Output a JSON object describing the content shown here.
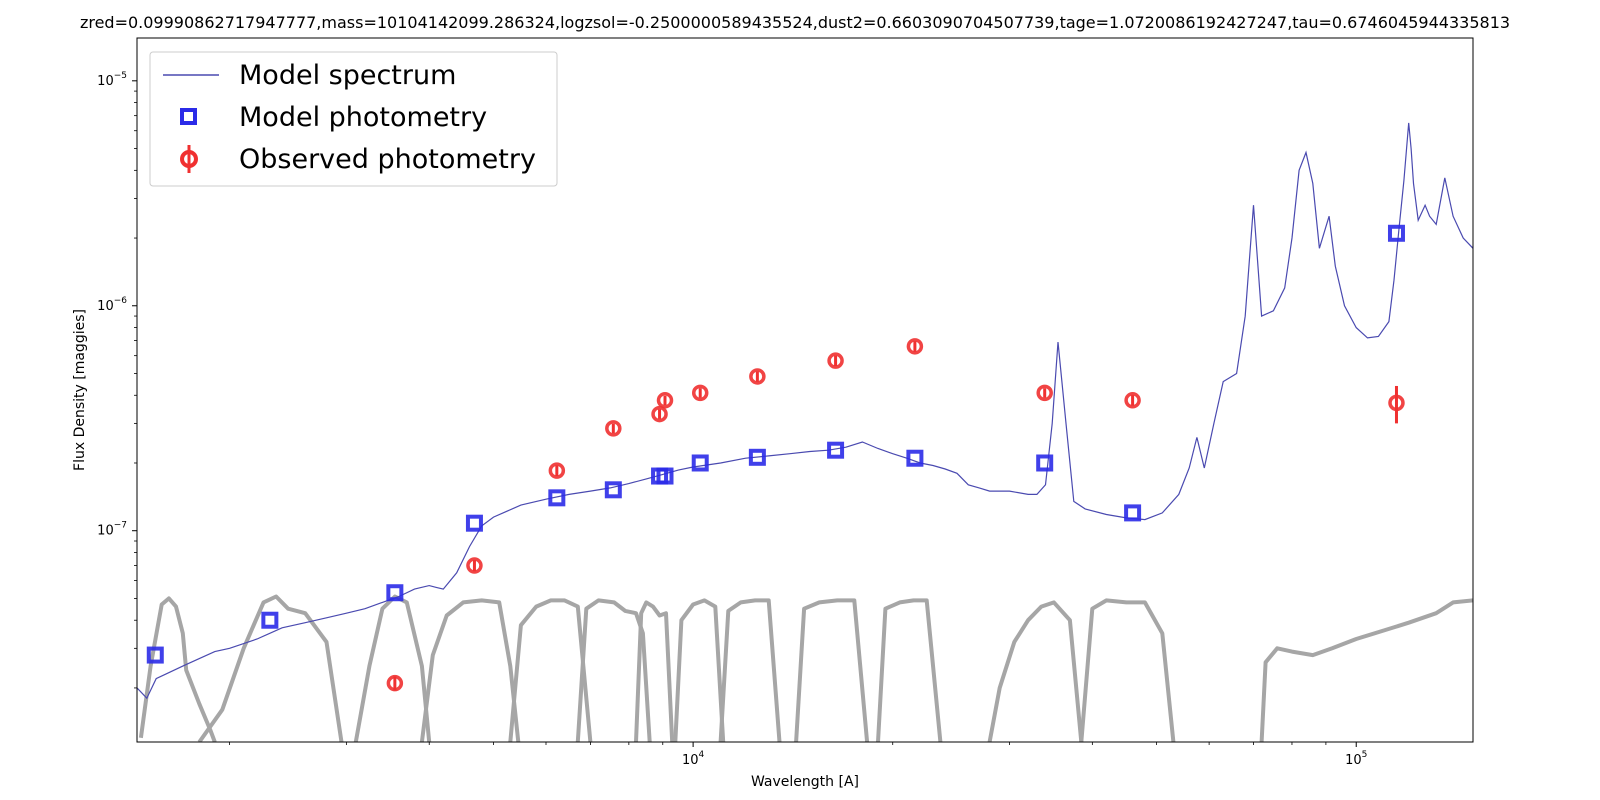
{
  "chart_data": {
    "type": "scatter",
    "title": "zred=0.09990862717947777,mass=10104142099.286324,logzsol=-0.2500000589435524,dust2=0.6603090704507739,tage=1.0720086192427247,tau=0.6746045944335813",
    "xlabel": "Wavelength [A]",
    "ylabel": "Flux Density [maggies]",
    "xscale": "log",
    "yscale": "log",
    "xlim": [
      1450,
      150000
    ],
    "ylim": [
      1.15e-08,
      1.55e-05
    ],
    "xticks": [
      {
        "value": 10000,
        "base": "10",
        "exp": "4"
      },
      {
        "value": 100000,
        "base": "10",
        "exp": "5"
      }
    ],
    "yticks": [
      {
        "value": 1e-07,
        "base": "10",
        "exp": "−7"
      },
      {
        "value": 1e-06,
        "base": "10",
        "exp": "−6"
      },
      {
        "value": 1e-05,
        "base": "10",
        "exp": "−5"
      }
    ],
    "legend": {
      "position": "top-left",
      "entries": [
        {
          "label": "Model spectrum",
          "marker": "line",
          "color": "#4a4ab0"
        },
        {
          "label": "Model photometry",
          "marker": "square",
          "color": "#2b2be8"
        },
        {
          "label": "Observed photometry",
          "marker": "circle-errorbar",
          "color": "#f03030"
        }
      ]
    },
    "colors": {
      "spectrum": "#4a4ab0",
      "model_phot": "#2b2be8",
      "observed_phot": "#f03030",
      "filters": "#a6a6a6"
    },
    "model_spectrum": {
      "x": [
        1450,
        1500,
        1550,
        1600,
        1700,
        1800,
        1900,
        2000,
        2200,
        2400,
        2600,
        2800,
        3000,
        3200,
        3400,
        3600,
        3800,
        4000,
        4100,
        4200,
        4400,
        4600,
        4800,
        5000,
        5500,
        6000,
        6500,
        7000,
        7500,
        8000,
        8500,
        9000,
        9500,
        10000,
        11000,
        12000,
        13000,
        14000,
        15000,
        16000,
        17000,
        18000,
        19000,
        20000,
        21000,
        22000,
        23000,
        24000,
        25000,
        26000,
        27000,
        28000,
        30000,
        32000,
        33000,
        34000,
        34800,
        35500,
        36500,
        37500,
        39000,
        42000,
        45000,
        48000,
        51000,
        54000,
        56000,
        57500,
        59000,
        61000,
        63000,
        66000,
        68000,
        70000,
        72000,
        75000,
        78000,
        80000,
        82000,
        84000,
        86000,
        88000,
        91000,
        93000,
        96000,
        100000,
        104000,
        108000,
        112000,
        114000,
        116000,
        118000,
        120000,
        121000,
        122000,
        124000,
        127000,
        129000,
        132000,
        136000,
        140000,
        145000,
        150000
      ],
      "y": [
        2e-08,
        1.8e-08,
        2.2e-08,
        2.3e-08,
        2.5e-08,
        2.7e-08,
        2.9e-08,
        3e-08,
        3.3e-08,
        3.7e-08,
        3.9e-08,
        4.1e-08,
        4.3e-08,
        4.5e-08,
        4.8e-08,
        5.1e-08,
        5.5e-08,
        5.7e-08,
        5.6e-08,
        5.5e-08,
        6.5e-08,
        8.5e-08,
        1.05e-07,
        1.15e-07,
        1.3e-07,
        1.38e-07,
        1.45e-07,
        1.5e-07,
        1.55e-07,
        1.62e-07,
        1.7e-07,
        1.78e-07,
        1.86e-07,
        1.92e-07,
        2e-07,
        2.1e-07,
        2.15e-07,
        2.2e-07,
        2.25e-07,
        2.28e-07,
        2.35e-07,
        2.48e-07,
        2.32e-07,
        2.2e-07,
        2.1e-07,
        2e-07,
        1.95e-07,
        1.88e-07,
        1.8e-07,
        1.6e-07,
        1.55e-07,
        1.5e-07,
        1.5e-07,
        1.45e-07,
        1.45e-07,
        1.6e-07,
        3e-07,
        6.9e-07,
        3e-07,
        1.35e-07,
        1.25e-07,
        1.18e-07,
        1.14e-07,
        1.12e-07,
        1.2e-07,
        1.45e-07,
        1.9e-07,
        2.6e-07,
        1.9e-07,
        3e-07,
        4.6e-07,
        5e-07,
        9e-07,
        2.8e-06,
        9e-07,
        9.5e-07,
        1.2e-06,
        2e-06,
        4e-06,
        4.8e-06,
        3.5e-06,
        1.8e-06,
        2.5e-06,
        1.5e-06,
        1e-06,
        8e-07,
        7.2e-07,
        7.3e-07,
        8.5e-07,
        1.3e-06,
        2.2e-06,
        3.6e-06,
        6.5e-06,
        5e-06,
        3.5e-06,
        2.4e-06,
        2.8e-06,
        2.5e-06,
        2.3e-06,
        3.7e-06,
        2.5e-06,
        2e-06,
        1.8e-06
      ]
    },
    "model_photometry": {
      "x": [
        1545,
        2300,
        3550,
        4680,
        6230,
        7580,
        8900,
        9070,
        10250,
        12500,
        16400,
        21600,
        33900,
        46000,
        115000
      ],
      "y": [
        2.8e-08,
        4e-08,
        5.3e-08,
        1.08e-07,
        1.4e-07,
        1.52e-07,
        1.75e-07,
        1.75e-07,
        2e-07,
        2.12e-07,
        2.28e-07,
        2.1e-07,
        2e-07,
        1.2e-07,
        2.1e-06
      ]
    },
    "observed_photometry": {
      "x": [
        3550,
        4680,
        6230,
        7580,
        8900,
        9070,
        10250,
        12500,
        16400,
        21600,
        33900,
        46000,
        115000
      ],
      "y": [
        2.1e-08,
        7e-08,
        1.85e-07,
        2.85e-07,
        3.3e-07,
        3.8e-07,
        4.1e-07,
        4.85e-07,
        5.7e-07,
        6.6e-07,
        4.1e-07,
        3.8e-07,
        3.7e-07
      ],
      "yerr": [
        1.5e-09,
        4e-09,
        1e-08,
        1.4e-08,
        1.6e-08,
        1.8e-08,
        2e-08,
        2.5e-08,
        3e-08,
        3.5e-08,
        2e-08,
        2e-08,
        7e-08
      ]
    },
    "filter_curves": [
      {
        "x": [
          1470,
          1520,
          1580,
          1620,
          1660,
          1700,
          1720,
          1800,
          1870,
          1900
        ],
        "y": [
          1.2e-08,
          2.5e-08,
          4.7e-08,
          5e-08,
          4.6e-08,
          3.5e-08,
          2.4e-08,
          1.7e-08,
          1.3e-08,
          1.15e-08
        ]
      },
      {
        "x": [
          1800,
          1950,
          2100,
          2250,
          2350,
          2450,
          2600,
          2800,
          2950
        ],
        "y": [
          1.15e-08,
          1.6e-08,
          3e-08,
          4.8e-08,
          5.1e-08,
          4.5e-08,
          4.3e-08,
          3.2e-08,
          1.15e-08
        ]
      },
      {
        "x": [
          3100,
          3250,
          3400,
          3550,
          3700,
          3900,
          4000
        ],
        "y": [
          1.15e-08,
          2.5e-08,
          4.5e-08,
          5.1e-08,
          4.8e-08,
          2.5e-08,
          1.15e-08
        ]
      },
      {
        "x": [
          3900,
          4050,
          4250,
          4500,
          4800,
          5100,
          5300,
          5450
        ],
        "y": [
          1.15e-08,
          2.8e-08,
          4.2e-08,
          4.8e-08,
          4.9e-08,
          4.8e-08,
          2.5e-08,
          1.15e-08
        ]
      },
      {
        "x": [
          5300,
          5500,
          5800,
          6100,
          6400,
          6700,
          7000
        ],
        "y": [
          1.15e-08,
          3.8e-08,
          4.6e-08,
          4.9e-08,
          4.9e-08,
          4.6e-08,
          1.15e-08
        ]
      },
      {
        "x": [
          6700,
          6900,
          7200,
          7600,
          7900,
          8200,
          8400,
          8600
        ],
        "y": [
          1.15e-08,
          4.5e-08,
          4.9e-08,
          4.8e-08,
          4.4e-08,
          4.3e-08,
          3.5e-08,
          1.15e-08
        ]
      },
      {
        "x": [
          8200,
          8350,
          8500,
          8700,
          8900,
          9100,
          9300
        ],
        "y": [
          1.15e-08,
          4.3e-08,
          4.8e-08,
          4.6e-08,
          4.2e-08,
          4.3e-08,
          1.15e-08
        ]
      },
      {
        "x": [
          9400,
          9600,
          10000,
          10400,
          10800,
          11100
        ],
        "y": [
          1.15e-08,
          4e-08,
          4.7e-08,
          4.9e-08,
          4.6e-08,
          1.15e-08
        ]
      },
      {
        "x": [
          11000,
          11300,
          11800,
          12400,
          13000,
          13500
        ],
        "y": [
          1.15e-08,
          4.4e-08,
          4.8e-08,
          4.9e-08,
          4.9e-08,
          1.15e-08
        ]
      },
      {
        "x": [
          14300,
          14700,
          15500,
          16500,
          17500,
          18300
        ],
        "y": [
          1.15e-08,
          4.5e-08,
          4.8e-08,
          4.9e-08,
          4.9e-08,
          1.15e-08
        ]
      },
      {
        "x": [
          19000,
          19500,
          20500,
          21500,
          22500,
          23600
        ],
        "y": [
          1.15e-08,
          4.5e-08,
          4.8e-08,
          4.9e-08,
          4.9e-08,
          1.15e-08
        ]
      },
      {
        "x": [
          28000,
          29000,
          30500,
          32000,
          33500,
          35000,
          37000,
          38500
        ],
        "y": [
          1.15e-08,
          2e-08,
          3.2e-08,
          4e-08,
          4.6e-08,
          4.8e-08,
          4e-08,
          1.15e-08
        ]
      },
      {
        "x": [
          38500,
          40000,
          42000,
          45000,
          48000,
          51000,
          53000
        ],
        "y": [
          1.15e-08,
          4.5e-08,
          4.9e-08,
          4.8e-08,
          4.8e-08,
          3.5e-08,
          1.15e-08
        ]
      },
      {
        "x": [
          72000,
          73000,
          76000,
          80000,
          86000,
          92000,
          100000,
          110000,
          120000,
          132000,
          140000,
          150000
        ],
        "y": [
          1.15e-08,
          2.6e-08,
          3e-08,
          2.9e-08,
          2.8e-08,
          3e-08,
          3.3e-08,
          3.6e-08,
          3.9e-08,
          4.3e-08,
          4.8e-08,
          4.9e-08
        ]
      }
    ]
  }
}
